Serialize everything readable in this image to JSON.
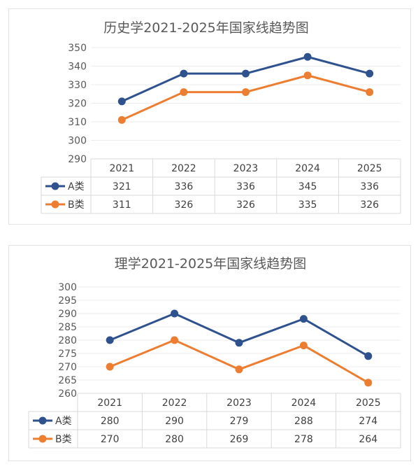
{
  "colors": {
    "series_a": "#2f528f",
    "series_b": "#ed7d31",
    "grid": "#d9d9d9",
    "text": "#595959"
  },
  "chart_data": [
    {
      "type": "line",
      "title": "历史学2021-2025年国家线趋势图",
      "categories": [
        "2021",
        "2022",
        "2023",
        "2024",
        "2025"
      ],
      "ylim": [
        290,
        350
      ],
      "yticks": [
        "350",
        "340",
        "330",
        "320",
        "310",
        "300",
        "290"
      ],
      "grid": true,
      "legend": "data-table",
      "series": [
        {
          "name": "A类",
          "values": [
            321,
            336,
            336,
            345,
            336
          ],
          "labels": [
            "321",
            "336",
            "336",
            "345",
            "336"
          ]
        },
        {
          "name": "B类",
          "values": [
            311,
            326,
            326,
            335,
            326
          ],
          "labels": [
            "311",
            "326",
            "326",
            "335",
            "326"
          ]
        }
      ]
    },
    {
      "type": "line",
      "title": "理学2021-2025年国家线趋势图",
      "categories": [
        "2021",
        "2022",
        "2023",
        "2024",
        "2025"
      ],
      "ylim": [
        260,
        300
      ],
      "yticks": [
        "300",
        "295",
        "290",
        "285",
        "280",
        "275",
        "270",
        "265",
        "260"
      ],
      "grid": true,
      "legend": "data-table",
      "series": [
        {
          "name": "A类",
          "values": [
            280,
            290,
            279,
            288,
            274
          ],
          "labels": [
            "280",
            "290",
            "279",
            "288",
            "274"
          ]
        },
        {
          "name": "B类",
          "values": [
            270,
            280,
            269,
            278,
            264
          ],
          "labels": [
            "270",
            "280",
            "269",
            "278",
            "264"
          ]
        }
      ]
    }
  ]
}
